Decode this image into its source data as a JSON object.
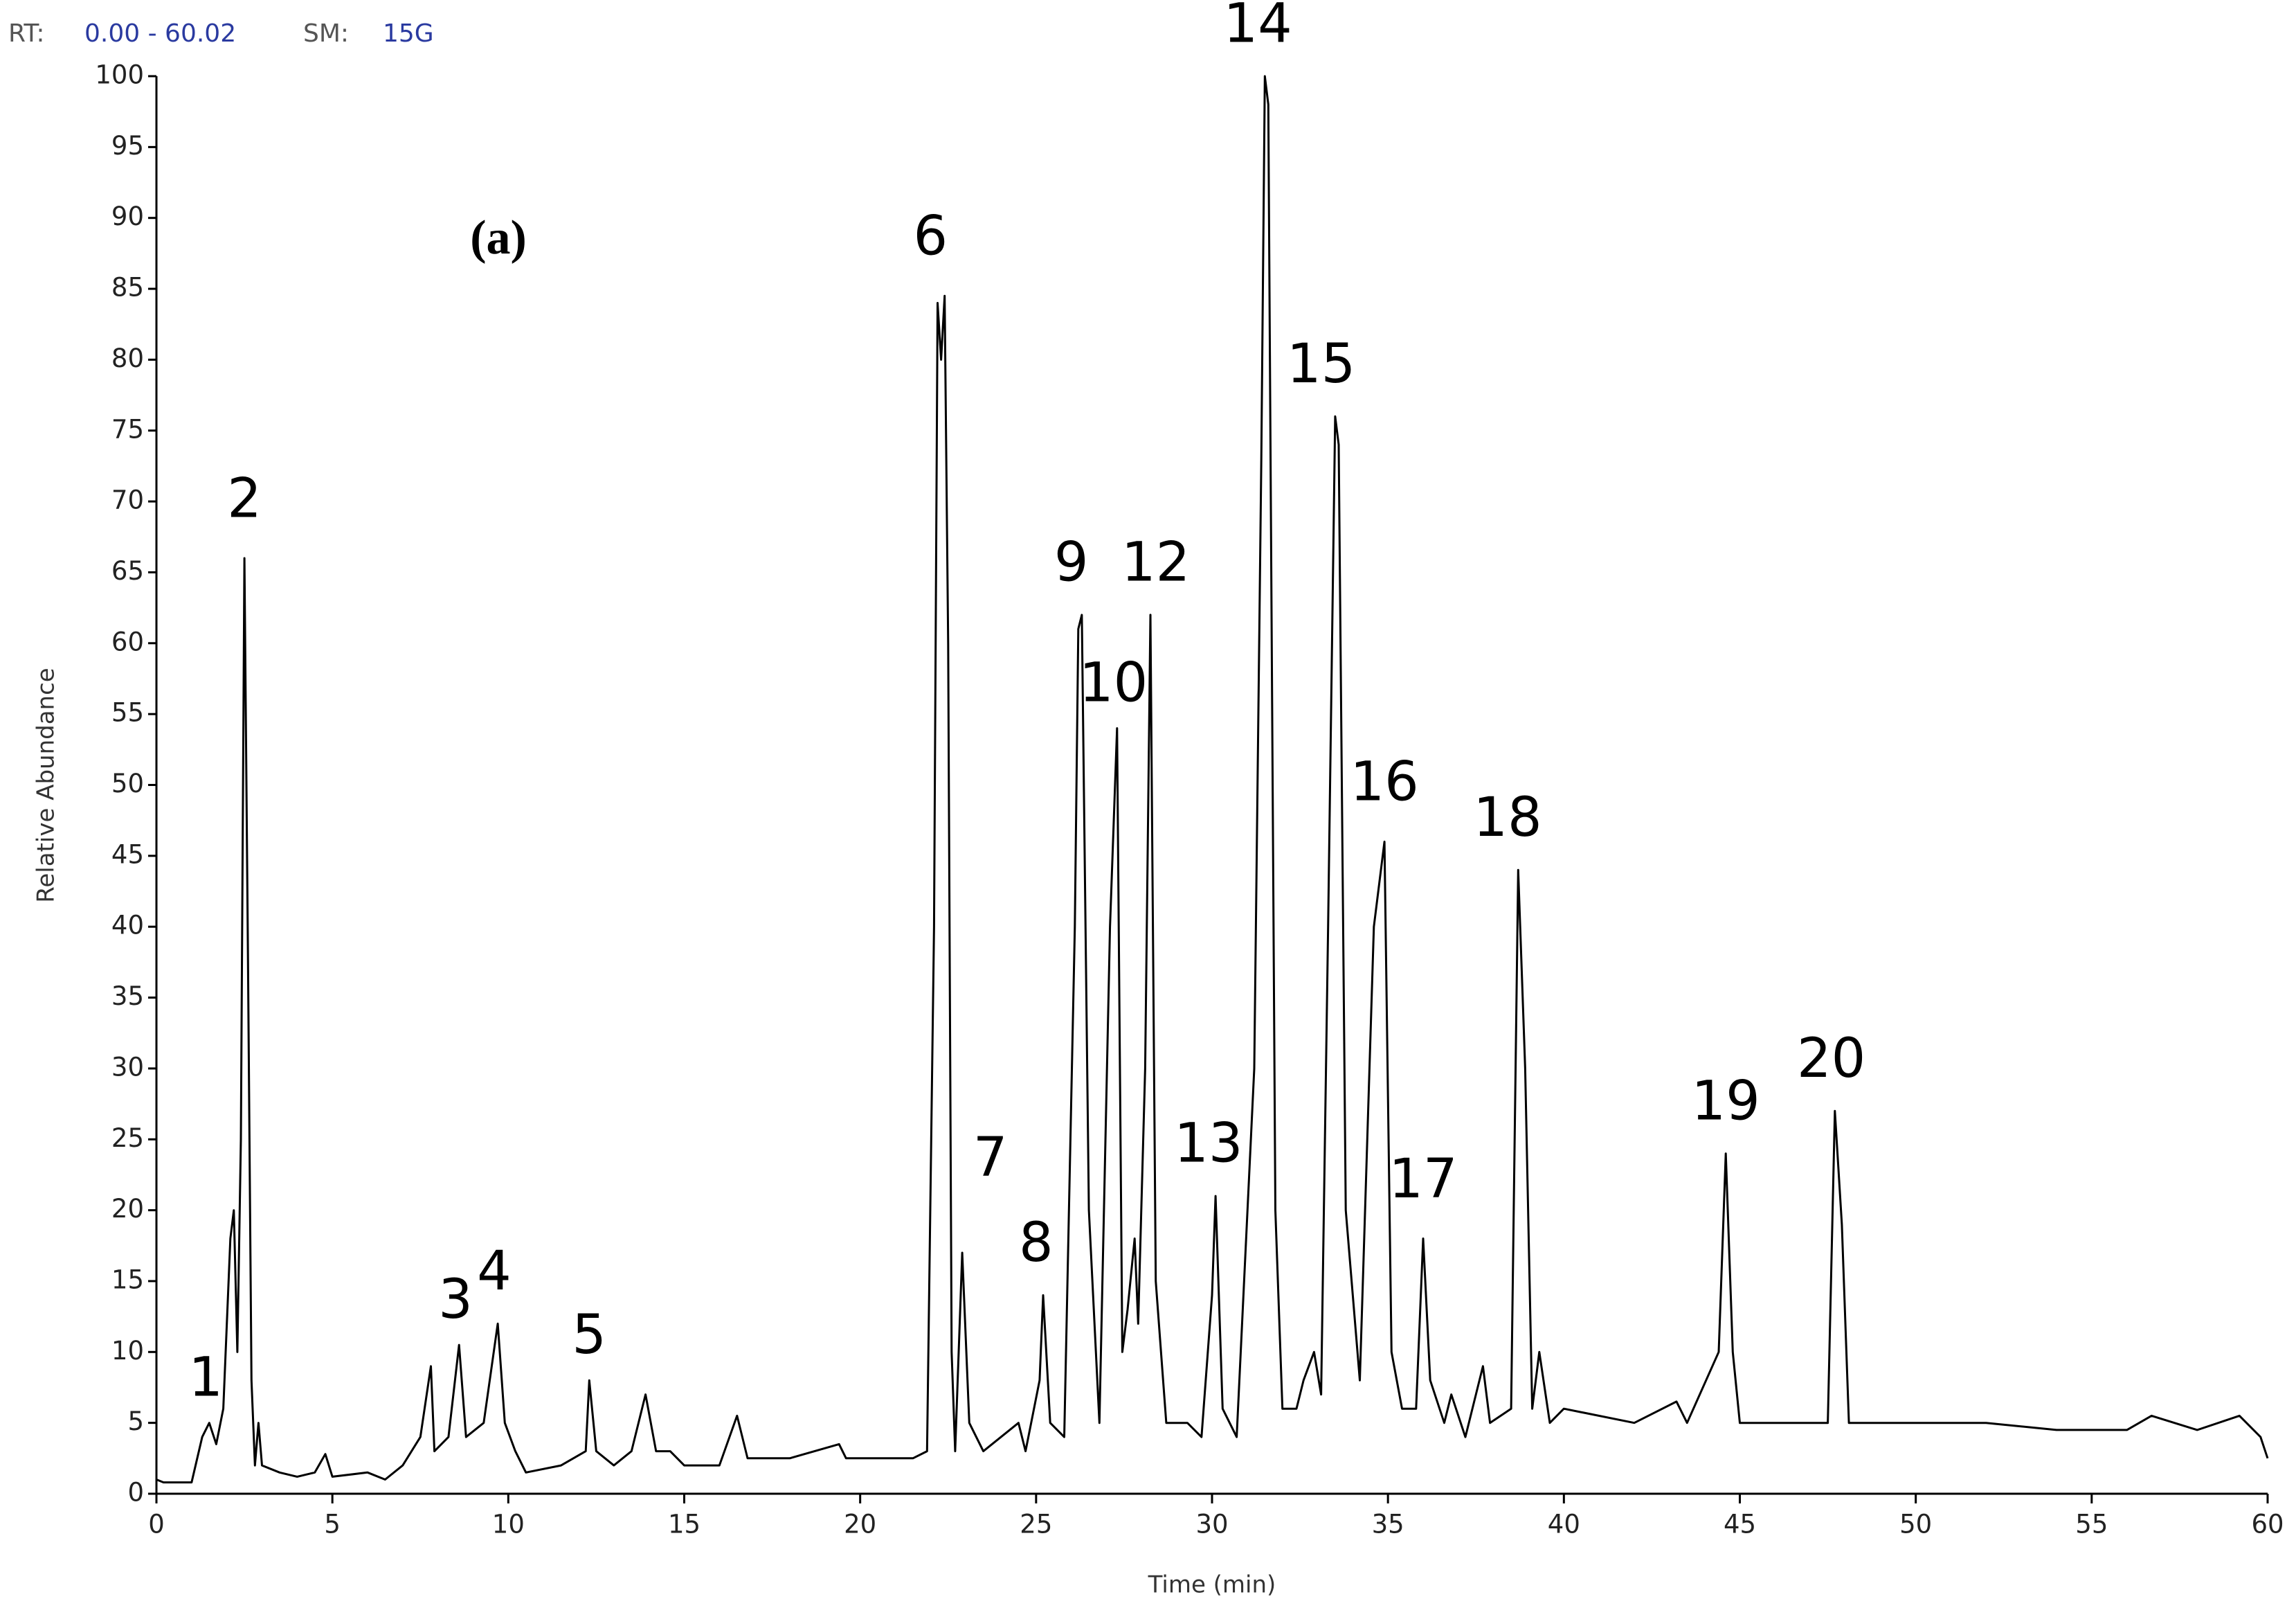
{
  "chart_data": {
    "type": "line",
    "header": {
      "rt_label": "RT:",
      "rt_range": "0.00 - 60.02",
      "sm_label": "SM:",
      "sm_value": "15G"
    },
    "panel_label": "(a)",
    "x_label": "Time (min)",
    "y_label": "Relative Abundance",
    "color": "#000000",
    "xlim": [
      0,
      60
    ],
    "ylim": [
      0,
      100
    ],
    "xticks": [
      0,
      5,
      10,
      15,
      20,
      25,
      30,
      35,
      40,
      45,
      50,
      55,
      60
    ],
    "yticks": [
      0,
      5,
      10,
      15,
      20,
      25,
      30,
      35,
      40,
      45,
      50,
      55,
      60,
      65,
      70,
      75,
      80,
      85,
      90,
      95,
      100
    ],
    "x": [
      0,
      0.2,
      1.0,
      1.3,
      1.5,
      1.7,
      1.9,
      2.1,
      2.2,
      2.3,
      2.4,
      2.5,
      2.6,
      2.7,
      2.8,
      2.9,
      3.0,
      3.5,
      4.0,
      4.5,
      4.8,
      5.0,
      6.0,
      6.5,
      7.0,
      7.5,
      7.8,
      7.9,
      8.3,
      8.6,
      8.8,
      9.3,
      9.7,
      9.9,
      10.2,
      10.5,
      11.5,
      12.2,
      12.3,
      12.5,
      13.0,
      13.5,
      13.9,
      14.2,
      14.6,
      15.0,
      16.0,
      16.5,
      16.8,
      18.0,
      19.4,
      19.6,
      21.5,
      21.9,
      22.1,
      22.2,
      22.3,
      22.4,
      22.5,
      22.6,
      22.7,
      22.9,
      23.1,
      23.5,
      24.5,
      24.7,
      25.1,
      25.2,
      25.4,
      25.8,
      26.1,
      26.2,
      26.3,
      26.5,
      26.8,
      27.1,
      27.3,
      27.45,
      27.6,
      27.8,
      27.9,
      28.1,
      28.25,
      28.4,
      28.7,
      29.3,
      29.7,
      30.0,
      30.1,
      30.3,
      30.7,
      31.2,
      31.4,
      31.5,
      31.6,
      31.8,
      32.0,
      32.4,
      32.6,
      32.9,
      33.1,
      33.3,
      33.5,
      33.6,
      33.8,
      34.2,
      34.6,
      34.9,
      35.1,
      35.4,
      35.8,
      36.0,
      36.2,
      36.6,
      36.8,
      37.2,
      37.7,
      37.9,
      38.5,
      38.7,
      38.9,
      39.1,
      39.3,
      39.6,
      40.0,
      42.0,
      43.2,
      43.5,
      44.4,
      44.6,
      44.8,
      45.0,
      47.0,
      47.5,
      47.7,
      47.9,
      48.1,
      50.0,
      52.0,
      54.0,
      56.0,
      56.7,
      58.0,
      59.2,
      59.8,
      60.0
    ],
    "values": [
      1,
      0.8,
      0.8,
      4,
      5,
      3.5,
      6,
      18,
      20,
      10,
      25,
      66,
      38,
      8,
      2,
      5,
      2,
      1.5,
      1.2,
      1.5,
      2.8,
      1.2,
      1.5,
      1,
      2,
      4,
      9,
      3,
      4,
      10.5,
      4,
      5,
      12,
      5,
      3,
      1.5,
      2,
      3,
      8,
      3,
      2,
      3,
      7,
      3,
      3,
      2,
      2,
      5.5,
      2.5,
      2.5,
      3.5,
      2.5,
      2.5,
      3,
      40,
      84,
      80,
      84.5,
      60,
      10,
      3,
      17,
      5,
      3,
      5,
      3,
      8,
      14,
      5,
      4,
      40,
      61,
      62,
      20,
      5,
      40,
      54,
      10,
      13,
      18,
      12,
      30,
      62,
      15,
      5,
      5,
      4,
      14,
      21,
      6,
      4,
      30,
      73,
      100,
      98,
      20,
      6,
      6,
      8,
      10,
      7,
      40,
      76,
      74,
      20,
      8,
      40,
      46,
      10,
      6,
      6,
      18,
      8,
      5,
      7,
      4,
      9,
      5,
      6,
      44,
      30,
      6,
      10,
      5,
      6,
      5,
      6.5,
      5,
      10,
      24,
      10,
      5,
      5,
      5,
      27,
      19,
      5,
      5,
      5,
      4.5,
      4.5,
      5.5,
      4.5,
      5.5,
      4,
      2.5
    ],
    "annotations": [
      {
        "text": "1",
        "x": 1.4,
        "y": 6.5
      },
      {
        "text": "2",
        "x": 2.5,
        "y": 68.5
      },
      {
        "text": "3",
        "x": 8.5,
        "y": 12
      },
      {
        "text": "4",
        "x": 9.6,
        "y": 14
      },
      {
        "text": "5",
        "x": 12.3,
        "y": 9.5
      },
      {
        "text": "6",
        "x": 22.0,
        "y": 87
      },
      {
        "text": "7",
        "x": 23.7,
        "y": 22
      },
      {
        "text": "8",
        "x": 25.0,
        "y": 16
      },
      {
        "text": "9",
        "x": 26.0,
        "y": 64
      },
      {
        "text": "10",
        "x": 27.2,
        "y": 55.5
      },
      {
        "text": "12",
        "x": 28.4,
        "y": 64
      },
      {
        "text": "13",
        "x": 29.9,
        "y": 23
      },
      {
        "text": "14",
        "x": 31.3,
        "y": 102
      },
      {
        "text": "15",
        "x": 33.1,
        "y": 78
      },
      {
        "text": "16",
        "x": 34.9,
        "y": 48.5
      },
      {
        "text": "17",
        "x": 36.0,
        "y": 20.5
      },
      {
        "text": "18",
        "x": 38.4,
        "y": 46
      },
      {
        "text": "19",
        "x": 44.6,
        "y": 26
      },
      {
        "text": "20",
        "x": 47.6,
        "y": 29
      }
    ]
  }
}
